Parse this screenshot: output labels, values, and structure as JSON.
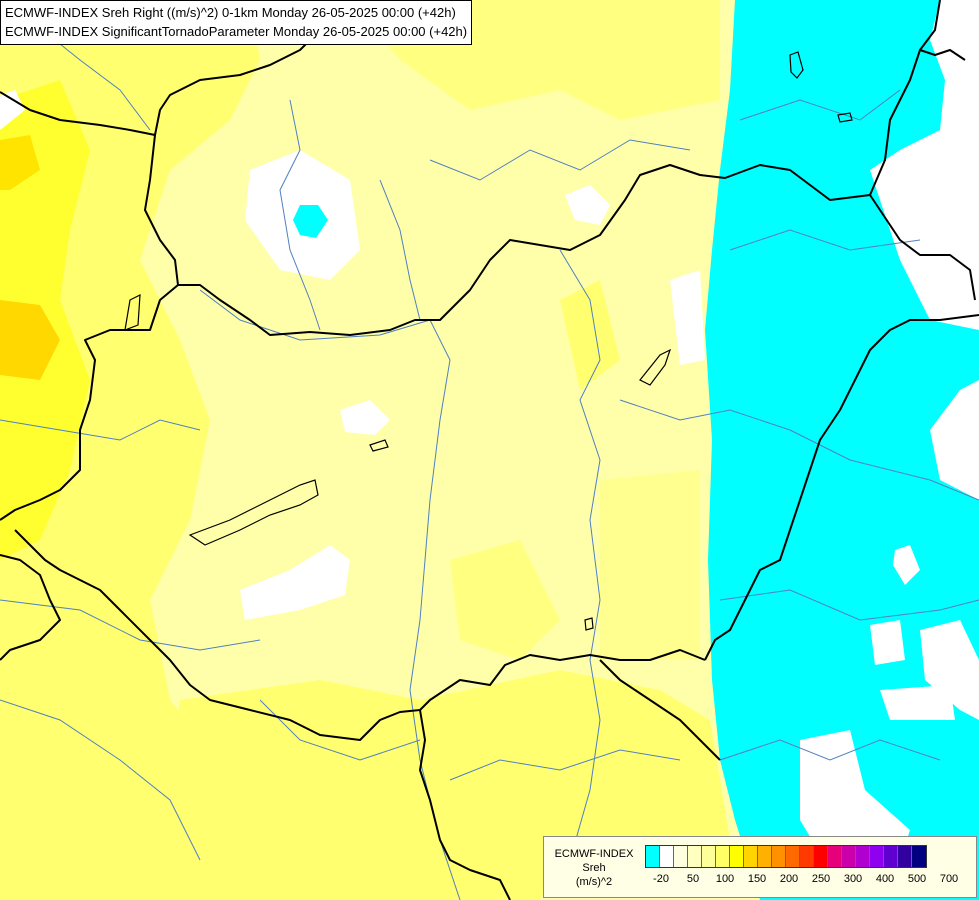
{
  "title": {
    "line1": "ECMWF-INDEX Sreh Right ((m/s)^2) 0-1km Monday 26-05-2025 00:00 (+42h)",
    "line2": "ECMWF-INDEX SignificantTornadoParameter Monday 26-05-2025 00:00 (+42h)"
  },
  "legend": {
    "line1": "ECMWF-INDEX",
    "line2": "Sreh",
    "line3": "(m/s)^2",
    "colors": [
      "#00ffff",
      "#ffffff",
      "#ffffe0",
      "#ffffc0",
      "#ffff9a",
      "#ffff66",
      "#ffff00",
      "#ffd400",
      "#ffb000",
      "#ff9000",
      "#ff6a00",
      "#ff3a00",
      "#ff0000",
      "#e6007a",
      "#cc00aa",
      "#b000d0",
      "#9000f0",
      "#6000d0",
      "#3000a0",
      "#000080"
    ],
    "ticks": [
      "-20",
      "50",
      "100",
      "150",
      "200",
      "250",
      "300",
      "400",
      "500",
      "700"
    ]
  },
  "colors": {
    "cyan": "#00ffff",
    "white": "#ffffff",
    "pale_yellow": "#ffffaa",
    "light_yellow": "#ffff80",
    "yellow": "#ffff40",
    "bright_yellow": "#ffff00",
    "gold": "#ffd800",
    "orange": "#ffb000",
    "border": "#000000",
    "river": "#5080c0"
  }
}
